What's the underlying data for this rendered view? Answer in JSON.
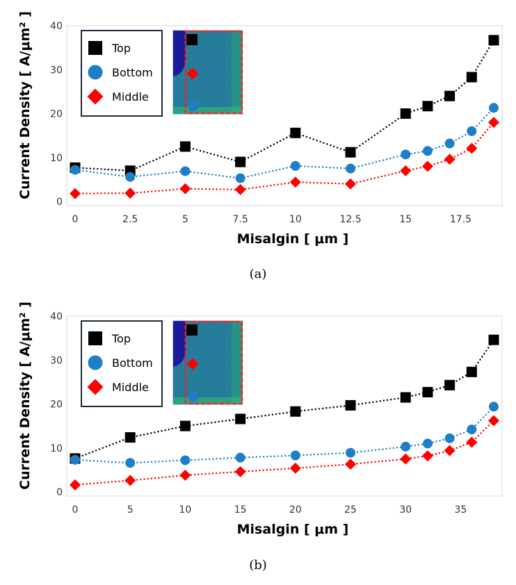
{
  "colors": {
    "top": "#000000",
    "bottom": "#1f7ec8",
    "middle": "#ff0000"
  },
  "chart_data": [
    {
      "id": "a",
      "type": "line",
      "caption": "(a)",
      "xlabel": "Misalgin [ μm ]",
      "ylabel": "Current Density [ A/μm² ]",
      "ylim": [
        0,
        40
      ],
      "yticks": [
        0,
        10,
        20,
        30,
        40
      ],
      "xticks": [
        "0",
        "2.5",
        "5",
        "7.5",
        "10",
        "12.5",
        "15",
        "17.5"
      ],
      "x": [
        0,
        2.5,
        5,
        7.5,
        10,
        12.5,
        15,
        16,
        17,
        18,
        19
      ],
      "xlim": [
        0,
        19
      ],
      "legend_position": "top-left",
      "series": [
        {
          "name": "Top",
          "marker": "square",
          "values": [
            7.7,
            7.0,
            12.5,
            9.0,
            15.6,
            11.2,
            20.0,
            21.7,
            24.0,
            28.3,
            36.7
          ]
        },
        {
          "name": "Bottom",
          "marker": "circle",
          "values": [
            7.2,
            5.6,
            6.9,
            5.3,
            8.1,
            7.5,
            10.7,
            11.5,
            13.2,
            16.0,
            21.3
          ]
        },
        {
          "name": "Middle",
          "marker": "diamond",
          "values": [
            1.8,
            1.9,
            2.9,
            2.7,
            4.4,
            4.0,
            7.0,
            8.0,
            9.6,
            12.1,
            18.0
          ]
        }
      ]
    },
    {
      "id": "b",
      "type": "line",
      "caption": "(b)",
      "xlabel": "Misalgin [ μm ]",
      "ylabel": "Current Density [ A/μm² ]",
      "ylim": [
        0,
        40
      ],
      "yticks": [
        0,
        10,
        20,
        30,
        40
      ],
      "xticks": [
        "0",
        "5",
        "10",
        "15",
        "20",
        "25",
        "30",
        "35"
      ],
      "x": [
        0,
        5,
        10,
        15,
        20,
        25,
        30,
        32,
        34,
        36,
        38
      ],
      "xlim": [
        0,
        38
      ],
      "legend_position": "top-left",
      "series": [
        {
          "name": "Top",
          "marker": "square",
          "values": [
            7.6,
            12.4,
            15.0,
            16.6,
            18.3,
            19.7,
            21.5,
            22.7,
            24.3,
            27.3,
            34.6
          ]
        },
        {
          "name": "Bottom",
          "marker": "circle",
          "values": [
            7.3,
            6.6,
            7.2,
            7.8,
            8.3,
            8.9,
            10.3,
            11.0,
            12.2,
            14.2,
            19.4
          ]
        },
        {
          "name": "Middle",
          "marker": "diamond",
          "values": [
            1.6,
            2.6,
            3.8,
            4.6,
            5.4,
            6.3,
            7.5,
            8.2,
            9.4,
            11.3,
            16.2
          ]
        }
      ]
    }
  ]
}
